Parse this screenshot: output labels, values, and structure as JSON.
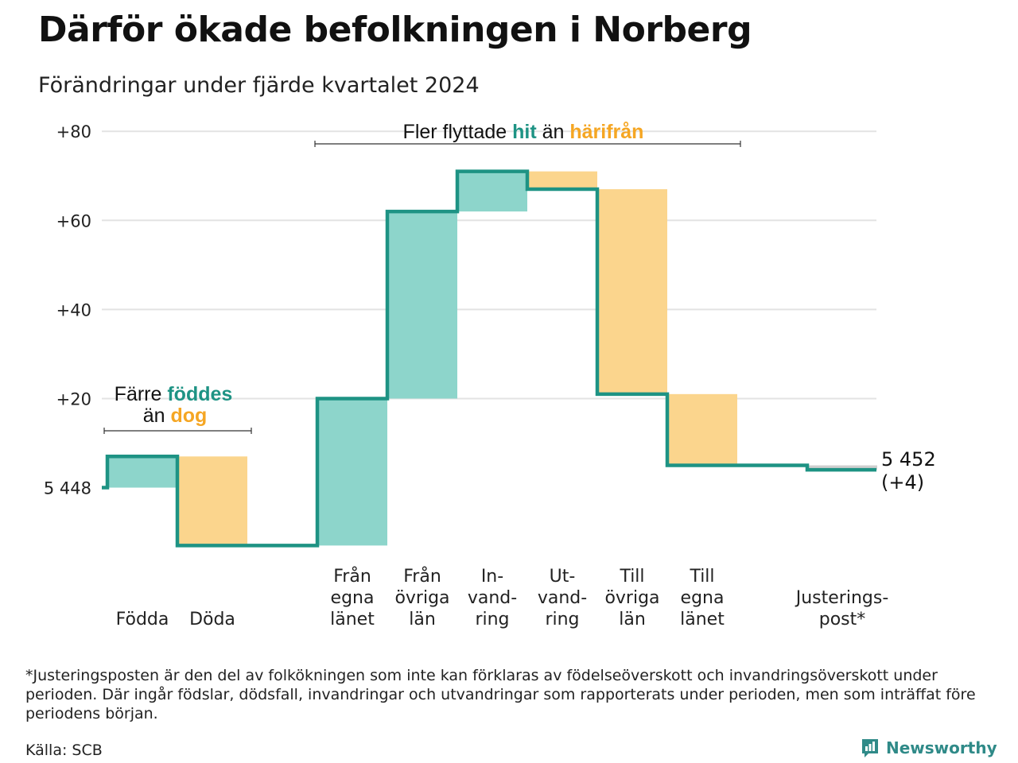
{
  "title": "Därför ökade befolkningen i Norberg",
  "subtitle": "Förändringar under fjärde kvartalet 2024",
  "footnote": "*Justeringsposten är den del av folkökningen som inte kan förklaras av födelseöverskott och invandringsöverskott under perioden. Där ingår födslar, dödsfall, invandringar och utvandringar som rapporterats under perioden, men som inträffat före periodens början.",
  "source": "Källa: SCB",
  "brand": "Newsworthy",
  "colors": {
    "increase": "#8dd5cb",
    "decrease": "#fbd58d",
    "line": "#1e9384",
    "teal_text": "#1e9384",
    "orange_text": "#f5a623",
    "adjust": "#cfcfcf",
    "grid": "#e3e3e3"
  },
  "chart_data": {
    "type": "waterfall",
    "base_value": 5448,
    "base_label": "5 448",
    "end_label": "5 452",
    "end_change": "(+4)",
    "ylim": [
      -19,
      82
    ],
    "y_ticks": [
      {
        "value": 20,
        "label": "+20"
      },
      {
        "value": 40,
        "label": "+40"
      },
      {
        "value": 60,
        "label": "+60"
      },
      {
        "value": 80,
        "label": "+80"
      }
    ],
    "steps": [
      {
        "lines": [
          "Födda"
        ],
        "change": 7
      },
      {
        "lines": [
          "Döda"
        ],
        "change": -20
      },
      {
        "lines": [
          "Från",
          "egna",
          "länet"
        ],
        "change": 33
      },
      {
        "lines": [
          "Från",
          "övriga",
          "län"
        ],
        "change": 42
      },
      {
        "lines": [
          "In-",
          "vand-",
          "ring"
        ],
        "change": 9
      },
      {
        "lines": [
          "Ut-",
          "vand-",
          "ring"
        ],
        "change": -4
      },
      {
        "lines": [
          "Till",
          "övriga",
          "län"
        ],
        "change": -46
      },
      {
        "lines": [
          "Till",
          "egna",
          "länet"
        ],
        "change": -16
      },
      {
        "lines": [
          "Justerings-",
          "post*"
        ],
        "change": -1
      }
    ],
    "annotations": [
      {
        "lines": [
          [
            "Färre ",
            "normal"
          ],
          [
            "föddes",
            "teal"
          ],
          [
            "än ",
            "normal"
          ],
          [
            "dog",
            "orange"
          ]
        ],
        "span": [
          "Födda",
          "Döda"
        ]
      },
      {
        "lines": [
          [
            "Fler flyttade ",
            "normal"
          ],
          [
            "hit",
            "teal"
          ],
          [
            " än ",
            "normal"
          ],
          [
            "härifrån",
            "orange"
          ]
        ],
        "span": [
          "Från egna länet",
          "Till egna länet"
        ]
      }
    ]
  }
}
